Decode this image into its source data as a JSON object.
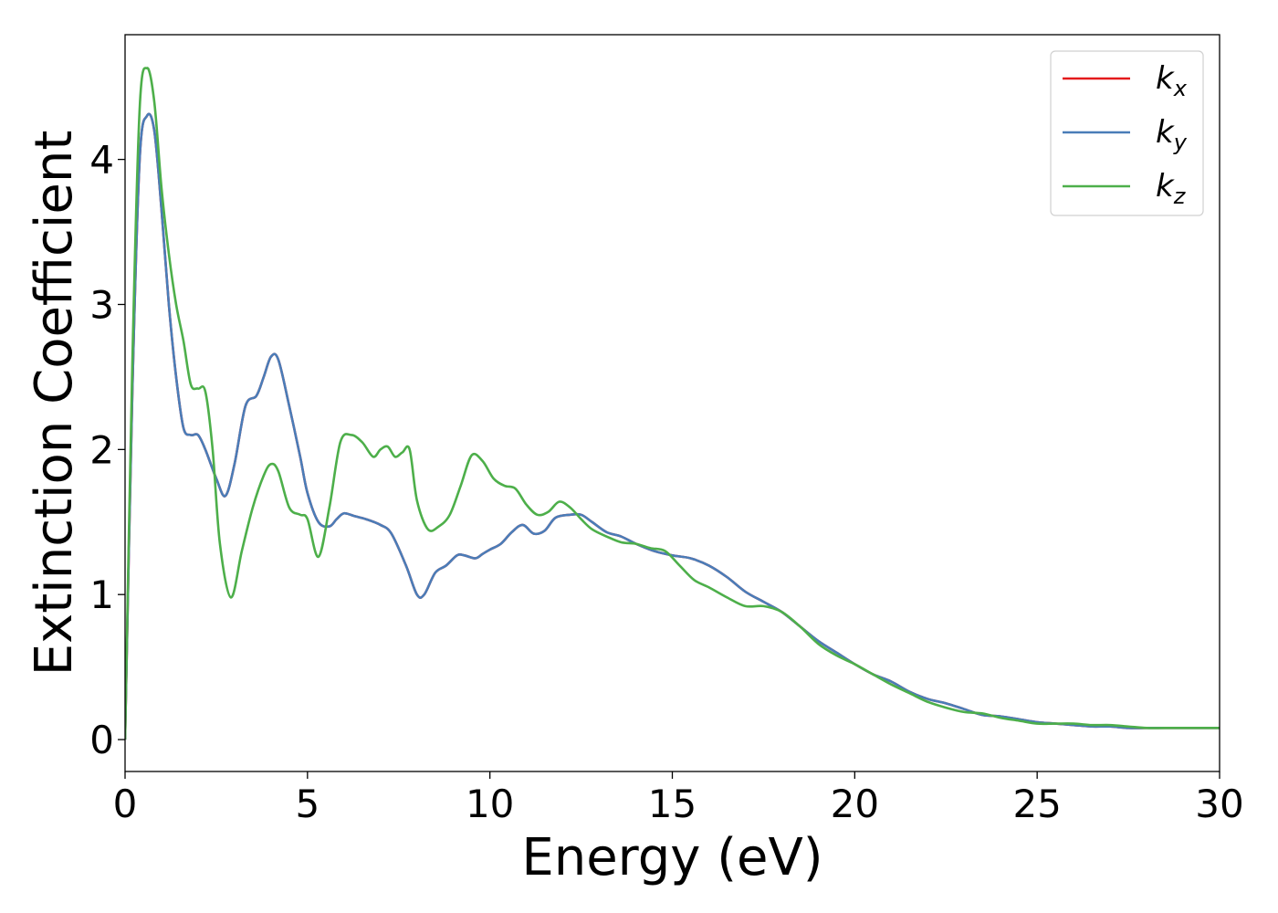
{
  "chart_data": {
    "type": "line",
    "title": "",
    "xlabel": "Energy (eV)",
    "ylabel": "Extinction Coefficient",
    "xlim": [
      0,
      30
    ],
    "ylim": [
      -0.22,
      4.86
    ],
    "xticks": [
      0,
      5,
      10,
      15,
      20,
      25,
      30
    ],
    "yticks": [
      0,
      1,
      2,
      3,
      4
    ],
    "grid": false,
    "legend": {
      "placement": "top-right"
    },
    "series": [
      {
        "key": "kx",
        "name": "k",
        "subscript": "x",
        "color": "#e41a1c",
        "x": [
          0,
          0.2,
          0.4,
          0.6,
          0.8,
          1.0,
          1.2,
          1.4,
          1.6,
          1.8,
          2.0,
          2.2,
          2.5,
          2.75,
          3.0,
          3.3,
          3.6,
          3.8,
          4.0,
          4.2,
          4.5,
          4.8,
          5.0,
          5.3,
          5.6,
          5.8,
          6.0,
          6.3,
          6.6,
          7.0,
          7.3,
          7.7,
          8.0,
          8.2,
          8.5,
          8.8,
          9.1,
          9.3,
          9.6,
          9.8,
          10.0,
          10.3,
          10.6,
          10.9,
          11.2,
          11.5,
          11.8,
          12.2,
          12.5,
          12.8,
          13.2,
          13.6,
          14.0,
          14.5,
          15.0,
          15.5,
          16.0,
          16.5,
          17.0,
          17.5,
          18.0,
          18.5,
          19.0,
          19.5,
          20.0,
          20.5,
          21.0,
          21.5,
          22.0,
          22.5,
          23.0,
          23.5,
          24.0,
          24.5,
          25.0,
          25.5,
          26.0,
          26.5,
          27.0,
          27.5,
          28.0,
          28.5,
          29.0,
          29.5,
          30.0
        ],
        "y": [
          0,
          2.4,
          4.0,
          4.3,
          4.2,
          3.65,
          3.0,
          2.5,
          2.15,
          2.1,
          2.1,
          2.0,
          1.8,
          1.68,
          1.9,
          2.3,
          2.37,
          2.5,
          2.64,
          2.62,
          2.3,
          1.95,
          1.7,
          1.5,
          1.47,
          1.52,
          1.56,
          1.54,
          1.52,
          1.48,
          1.42,
          1.2,
          1.0,
          1.0,
          1.15,
          1.2,
          1.27,
          1.27,
          1.25,
          1.28,
          1.31,
          1.35,
          1.43,
          1.48,
          1.42,
          1.44,
          1.53,
          1.55,
          1.55,
          1.5,
          1.43,
          1.4,
          1.35,
          1.3,
          1.27,
          1.25,
          1.2,
          1.12,
          1.02,
          0.95,
          0.88,
          0.78,
          0.68,
          0.6,
          0.52,
          0.45,
          0.4,
          0.33,
          0.28,
          0.25,
          0.21,
          0.17,
          0.16,
          0.14,
          0.12,
          0.11,
          0.1,
          0.09,
          0.09,
          0.08,
          0.08,
          0.08,
          0.08,
          0.08,
          0.08
        ]
      },
      {
        "key": "ky",
        "name": "k",
        "subscript": "y",
        "color": "#4a7db8",
        "x": [
          0,
          0.2,
          0.4,
          0.6,
          0.8,
          1.0,
          1.2,
          1.4,
          1.6,
          1.8,
          2.0,
          2.2,
          2.5,
          2.75,
          3.0,
          3.3,
          3.6,
          3.8,
          4.0,
          4.2,
          4.5,
          4.8,
          5.0,
          5.3,
          5.6,
          5.8,
          6.0,
          6.3,
          6.6,
          7.0,
          7.3,
          7.7,
          8.0,
          8.2,
          8.5,
          8.8,
          9.1,
          9.3,
          9.6,
          9.8,
          10.0,
          10.3,
          10.6,
          10.9,
          11.2,
          11.5,
          11.8,
          12.2,
          12.5,
          12.8,
          13.2,
          13.6,
          14.0,
          14.5,
          15.0,
          15.5,
          16.0,
          16.5,
          17.0,
          17.5,
          18.0,
          18.5,
          19.0,
          19.5,
          20.0,
          20.5,
          21.0,
          21.5,
          22.0,
          22.5,
          23.0,
          23.5,
          24.0,
          24.5,
          25.0,
          25.5,
          26.0,
          26.5,
          27.0,
          27.5,
          28.0,
          28.5,
          29.0,
          29.5,
          30.0
        ],
        "y": [
          0,
          2.4,
          4.0,
          4.3,
          4.2,
          3.65,
          3.0,
          2.5,
          2.15,
          2.1,
          2.1,
          2.0,
          1.8,
          1.68,
          1.9,
          2.3,
          2.37,
          2.5,
          2.64,
          2.62,
          2.3,
          1.95,
          1.7,
          1.5,
          1.47,
          1.52,
          1.56,
          1.54,
          1.52,
          1.48,
          1.42,
          1.2,
          1.0,
          1.0,
          1.15,
          1.2,
          1.27,
          1.27,
          1.25,
          1.28,
          1.31,
          1.35,
          1.43,
          1.48,
          1.42,
          1.44,
          1.53,
          1.55,
          1.55,
          1.5,
          1.43,
          1.4,
          1.35,
          1.3,
          1.27,
          1.25,
          1.2,
          1.12,
          1.02,
          0.95,
          0.88,
          0.78,
          0.68,
          0.6,
          0.52,
          0.45,
          0.4,
          0.33,
          0.28,
          0.25,
          0.21,
          0.17,
          0.16,
          0.14,
          0.12,
          0.11,
          0.1,
          0.09,
          0.09,
          0.08,
          0.08,
          0.08,
          0.08,
          0.08,
          0.08
        ]
      },
      {
        "key": "kz",
        "name": "k",
        "subscript": "z",
        "color": "#4daf4a",
        "x": [
          0,
          0.2,
          0.4,
          0.6,
          0.8,
          1.0,
          1.2,
          1.4,
          1.6,
          1.8,
          2.0,
          2.2,
          2.4,
          2.6,
          2.9,
          3.2,
          3.5,
          3.8,
          4.0,
          4.2,
          4.5,
          4.8,
          5.0,
          5.3,
          5.6,
          5.9,
          6.2,
          6.5,
          6.8,
          7.0,
          7.2,
          7.4,
          7.6,
          7.8,
          8.0,
          8.3,
          8.6,
          8.9,
          9.2,
          9.5,
          9.8,
          10.1,
          10.4,
          10.7,
          11.0,
          11.3,
          11.6,
          11.9,
          12.2,
          12.5,
          12.8,
          13.2,
          13.6,
          14.0,
          14.4,
          14.8,
          15.2,
          15.6,
          16.0,
          16.5,
          17.0,
          17.5,
          18.0,
          18.5,
          19.0,
          19.5,
          20.0,
          20.5,
          21.0,
          21.5,
          22.0,
          22.5,
          23.0,
          23.5,
          24.0,
          24.5,
          25.0,
          25.5,
          26.0,
          26.5,
          27.0,
          27.5,
          28.0,
          28.5,
          29.0,
          29.5,
          30.0
        ],
        "y": [
          0,
          2.6,
          4.35,
          4.63,
          4.4,
          3.8,
          3.35,
          3.0,
          2.75,
          2.45,
          2.42,
          2.4,
          2.0,
          1.35,
          0.98,
          1.3,
          1.6,
          1.82,
          1.9,
          1.85,
          1.6,
          1.55,
          1.52,
          1.26,
          1.6,
          2.05,
          2.1,
          2.05,
          1.95,
          2.0,
          2.02,
          1.95,
          1.98,
          2.0,
          1.65,
          1.45,
          1.47,
          1.55,
          1.75,
          1.96,
          1.92,
          1.8,
          1.75,
          1.73,
          1.62,
          1.55,
          1.57,
          1.64,
          1.6,
          1.52,
          1.45,
          1.4,
          1.36,
          1.35,
          1.32,
          1.3,
          1.2,
          1.1,
          1.05,
          0.98,
          0.92,
          0.92,
          0.88,
          0.78,
          0.66,
          0.58,
          0.52,
          0.45,
          0.38,
          0.32,
          0.26,
          0.22,
          0.19,
          0.18,
          0.15,
          0.13,
          0.11,
          0.11,
          0.11,
          0.1,
          0.1,
          0.09,
          0.08,
          0.08,
          0.08,
          0.08,
          0.08
        ]
      }
    ]
  }
}
